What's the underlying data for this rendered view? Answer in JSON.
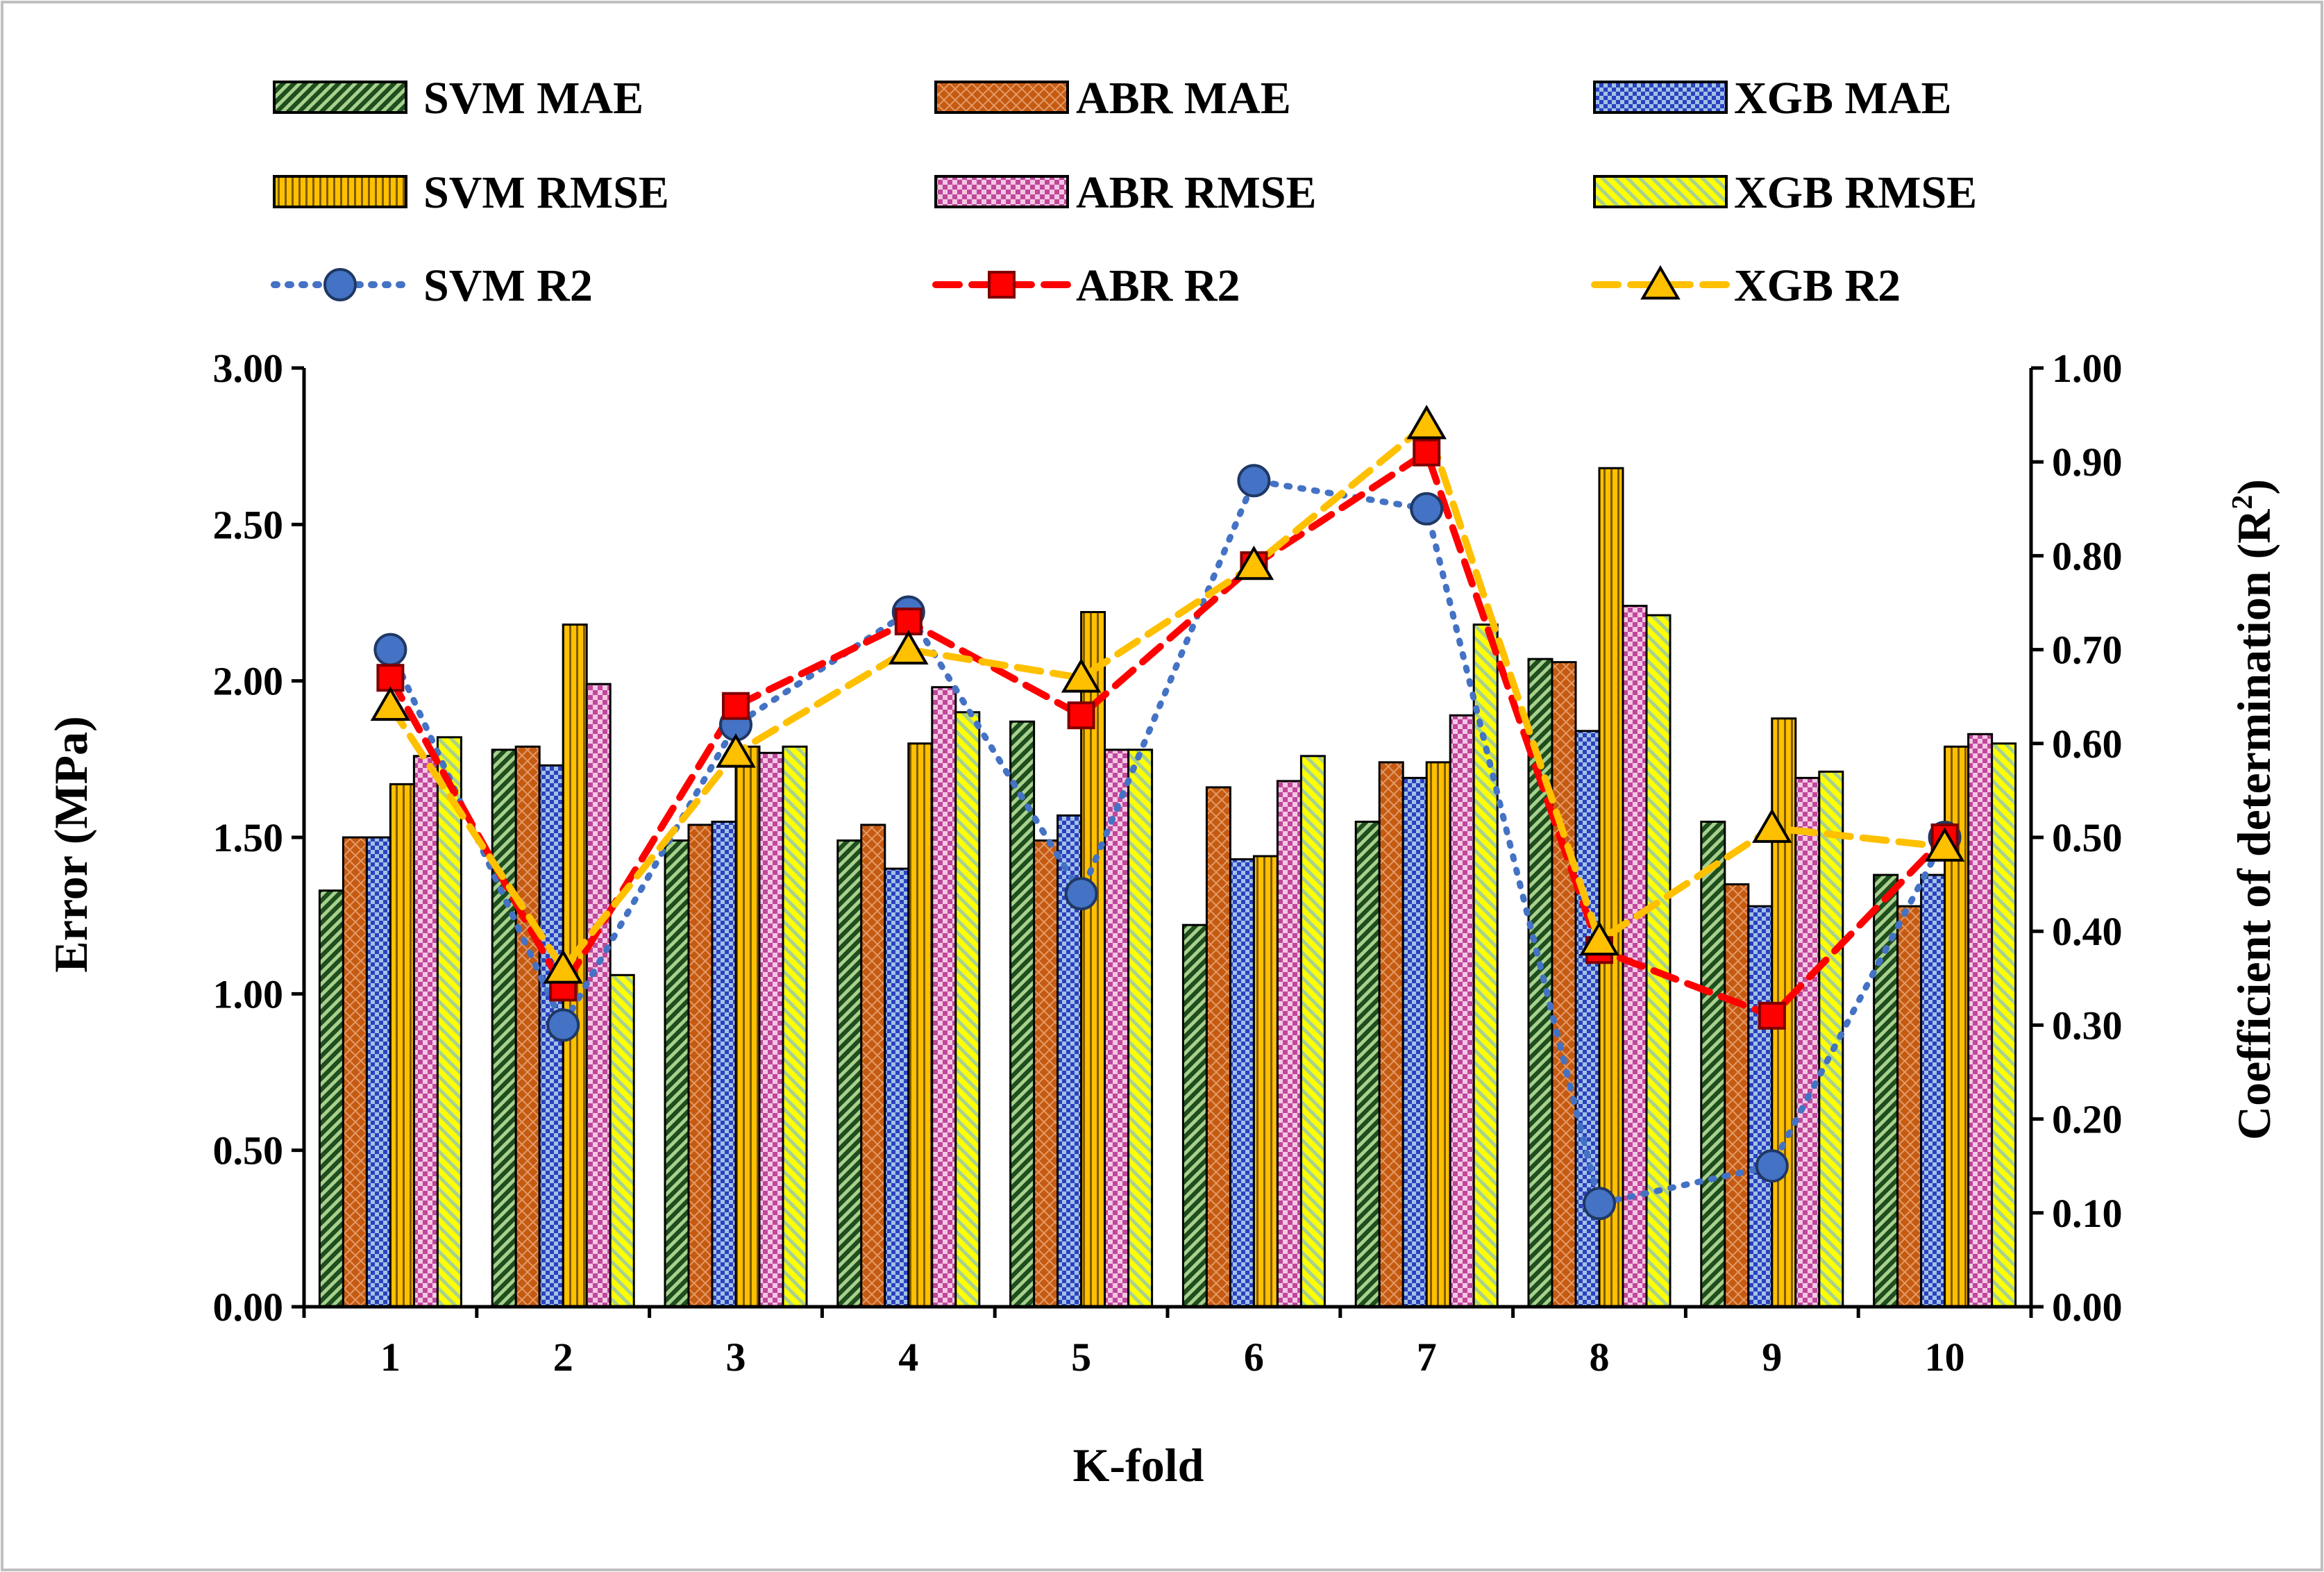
{
  "chart_data": {
    "type": "bar",
    "title": "",
    "xlabel": "K-fold",
    "ylabel": "Error (MPa)",
    "y2label": "Coefficient of determination (R",
    "y2label_sup": "2",
    "y2label_end": ")",
    "ylim": [
      0,
      3
    ],
    "y2lim": [
      0,
      1
    ],
    "categories": [
      "1",
      "2",
      "3",
      "4",
      "5",
      "6",
      "7",
      "8",
      "9",
      "10"
    ],
    "y_ticks": [
      "0.00",
      "0.50",
      "1.00",
      "1.50",
      "2.00",
      "2.50",
      "3.00"
    ],
    "y2_ticks": [
      "0.00",
      "0.10",
      "0.20",
      "0.30",
      "0.40",
      "0.50",
      "0.60",
      "0.70",
      "0.80",
      "0.90",
      "1.00"
    ],
    "legend_position": "top",
    "bar_series": [
      {
        "name": "SVM MAE",
        "pattern": "svm-mae",
        "values": [
          1.33,
          1.78,
          1.49,
          1.49,
          1.87,
          1.22,
          1.55,
          2.07,
          1.55,
          1.38
        ]
      },
      {
        "name": "ABR MAE",
        "pattern": "abr-mae",
        "values": [
          1.5,
          1.79,
          1.54,
          1.54,
          1.49,
          1.66,
          1.74,
          2.06,
          1.35,
          1.28
        ]
      },
      {
        "name": "XGB MAE",
        "pattern": "xgb-mae",
        "values": [
          1.5,
          1.73,
          1.55,
          1.4,
          1.57,
          1.43,
          1.69,
          1.84,
          1.28,
          1.38
        ]
      },
      {
        "name": "SVM RMSE",
        "pattern": "svm-rmse",
        "values": [
          1.67,
          2.18,
          1.79,
          1.8,
          2.22,
          1.44,
          1.74,
          2.68,
          1.88,
          1.79
        ]
      },
      {
        "name": "ABR RMSE",
        "pattern": "abr-rmse",
        "values": [
          1.76,
          1.99,
          1.77,
          1.98,
          1.78,
          1.68,
          1.89,
          2.24,
          1.69,
          1.83
        ]
      },
      {
        "name": "XGB RMSE",
        "pattern": "xgb-rmse",
        "values": [
          1.82,
          1.06,
          1.79,
          1.9,
          1.78,
          1.76,
          2.18,
          2.21,
          1.71,
          1.8
        ]
      }
    ],
    "line_series": [
      {
        "name": "SVM R2",
        "color": "#4472C4",
        "marker": "circle",
        "marker_fill": "#4472C4",
        "dash": "dot",
        "values": [
          0.7,
          0.3,
          0.62,
          0.74,
          0.44,
          0.88,
          0.85,
          0.11,
          0.15,
          0.5
        ]
      },
      {
        "name": "ABR R2",
        "color": "#FF0000",
        "marker": "square",
        "marker_fill": "#FF0000",
        "dash": "dash",
        "values": [
          0.67,
          0.34,
          0.64,
          0.73,
          0.63,
          0.79,
          0.91,
          0.38,
          0.31,
          0.5
        ]
      },
      {
        "name": "XGB R2",
        "color": "#FFC000",
        "marker": "triangle",
        "marker_fill": "#FFC000",
        "dash": "dash",
        "values": [
          0.64,
          0.36,
          0.59,
          0.7,
          0.67,
          0.79,
          0.94,
          0.39,
          0.51,
          0.49
        ]
      }
    ]
  }
}
